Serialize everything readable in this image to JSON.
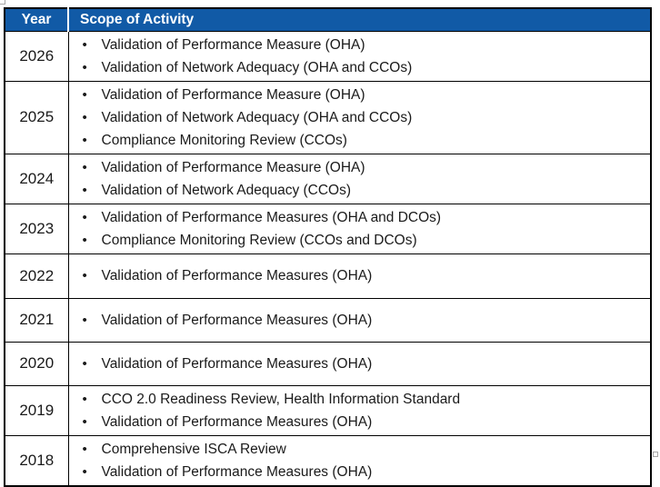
{
  "table": {
    "header": {
      "year_label": "Year",
      "scope_label": "Scope of Activity"
    },
    "rows": [
      {
        "year": "2026",
        "activities": [
          "Validation of Performance Measure (OHA)",
          "Validation of Network Adequacy (OHA and CCOs)"
        ]
      },
      {
        "year": "2025",
        "activities": [
          "Validation of Performance Measure (OHA)",
          "Validation of Network Adequacy (OHA and CCOs)",
          "Compliance Monitoring Review (CCOs)"
        ]
      },
      {
        "year": "2024",
        "activities": [
          "Validation of Performance Measure (OHA)",
          "Validation of Network Adequacy (CCOs)"
        ]
      },
      {
        "year": "2023",
        "activities": [
          "Validation of Performance Measures (OHA and DCOs)",
          "Compliance Monitoring Review (CCOs and DCOs)"
        ]
      },
      {
        "year": "2022",
        "activities": [
          "Validation of Performance Measures (OHA)"
        ]
      },
      {
        "year": "2021",
        "activities": [
          "Validation of Performance Measures (OHA)"
        ]
      },
      {
        "year": "2020",
        "activities": [
          "Validation of Performance Measures (OHA)"
        ]
      },
      {
        "year": "2019",
        "activities": [
          "CCO 2.0 Readiness Review, Health Information Standard",
          "Validation of Performance Measures (OHA)"
        ]
      },
      {
        "year": "2018",
        "activities": [
          "Comprehensive ISCA Review",
          "Validation of Performance Measures (OHA)"
        ]
      }
    ],
    "colors": {
      "header_bg": "#115AA6",
      "header_text": "#FFFFFF",
      "border": "#000000",
      "body_text": "#1A1A1A"
    },
    "icons": {
      "move_handle": "table-move-handle",
      "resize_handle": "table-resize-handle"
    }
  }
}
